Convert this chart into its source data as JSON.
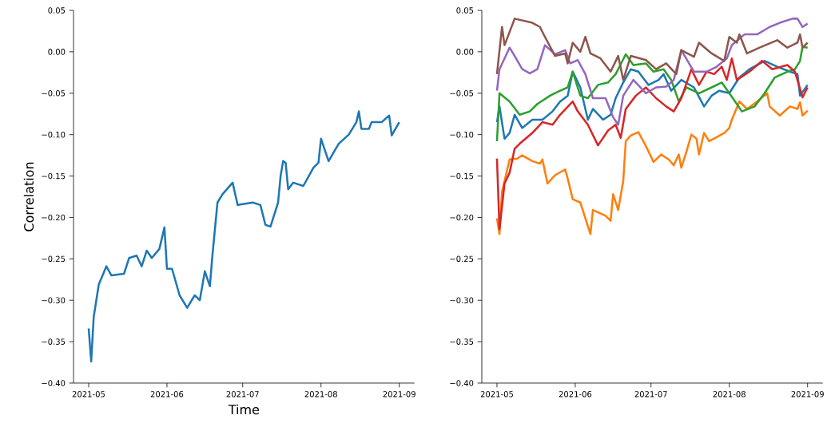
{
  "chart_data": [
    {
      "type": "line",
      "xlabel": "Time",
      "ylabel": "Correlation",
      "xlim": [
        "2021-04-25",
        "2021-09-07"
      ],
      "ylim": [
        -0.4,
        0.05
      ],
      "xticks": [
        "2021-05",
        "2021-06",
        "2021-07",
        "2021-08",
        "2021-09"
      ],
      "yticks": [
        {
          "value": -0.4,
          "label": "−0.40"
        },
        {
          "value": -0.35,
          "label": "−0.35"
        },
        {
          "value": -0.3,
          "label": "−0.30"
        },
        {
          "value": -0.25,
          "label": "−0.25"
        },
        {
          "value": -0.2,
          "label": "−0.20"
        },
        {
          "value": -0.15,
          "label": "−0.15"
        },
        {
          "value": -0.1,
          "label": "−0.10"
        },
        {
          "value": -0.05,
          "label": "−0.05"
        },
        {
          "value": 0,
          "label": "0.00"
        },
        {
          "value": 0.05,
          "label": "0.05"
        }
      ],
      "series": [
        {
          "color": "#1f77b4",
          "x": [
            "2021-05-01",
            "2021-05-02",
            "2021-05-03",
            "2021-05-05",
            "2021-05-08",
            "2021-05-10",
            "2021-05-15",
            "2021-05-17",
            "2021-05-20",
            "2021-05-22",
            "2021-05-24",
            "2021-05-26",
            "2021-05-29",
            "2021-05-31",
            "2021-06-01",
            "2021-06-03",
            "2021-06-06",
            "2021-06-09",
            "2021-06-12",
            "2021-06-14",
            "2021-06-16",
            "2021-06-18",
            "2021-06-19",
            "2021-06-20",
            "2021-06-21",
            "2021-06-23",
            "2021-06-27",
            "2021-06-29",
            "2021-07-05",
            "2021-07-08",
            "2021-07-10",
            "2021-07-12",
            "2021-07-15",
            "2021-07-16",
            "2021-07-17",
            "2021-07-18",
            "2021-07-19",
            "2021-07-21",
            "2021-07-25",
            "2021-07-29",
            "2021-07-31",
            "2021-08-01",
            "2021-08-02",
            "2021-08-04",
            "2021-08-08",
            "2021-08-12",
            "2021-08-15",
            "2021-08-16",
            "2021-08-17",
            "2021-08-20",
            "2021-08-21",
            "2021-08-25",
            "2021-08-28",
            "2021-08-29",
            "2021-09-01"
          ],
          "values": [
            -0.334,
            -0.374,
            -0.32,
            -0.281,
            -0.259,
            -0.27,
            -0.268,
            -0.249,
            -0.246,
            -0.259,
            -0.24,
            -0.249,
            -0.238,
            -0.212,
            -0.262,
            -0.262,
            -0.294,
            -0.309,
            -0.294,
            -0.3,
            -0.265,
            -0.283,
            -0.246,
            -0.214,
            -0.182,
            -0.172,
            -0.158,
            -0.185,
            -0.182,
            -0.185,
            -0.209,
            -0.211,
            -0.182,
            -0.15,
            -0.132,
            -0.134,
            -0.166,
            -0.158,
            -0.162,
            -0.14,
            -0.134,
            -0.105,
            -0.114,
            -0.132,
            -0.111,
            -0.1,
            -0.085,
            -0.072,
            -0.093,
            -0.093,
            -0.085,
            -0.085,
            -0.077,
            -0.101,
            -0.085
          ]
        }
      ]
    },
    {
      "type": "line",
      "xlim": [
        "2021-04-25",
        "2021-09-07"
      ],
      "ylim": [
        -0.4,
        0.05
      ],
      "xticks": [
        "2021-05",
        "2021-06",
        "2021-07",
        "2021-08",
        "2021-09"
      ],
      "yticks": [
        {
          "value": -0.4,
          "label": "−0.40"
        },
        {
          "value": -0.35,
          "label": "−0.35"
        },
        {
          "value": -0.3,
          "label": "−0.30"
        },
        {
          "value": -0.25,
          "label": "−0.25"
        },
        {
          "value": -0.2,
          "label": "−0.20"
        },
        {
          "value": -0.15,
          "label": "−0.15"
        },
        {
          "value": -0.1,
          "label": "−0.10"
        },
        {
          "value": -0.05,
          "label": "−0.05"
        },
        {
          "value": 0,
          "label": "0.00"
        },
        {
          "value": 0.05,
          "label": "0.05"
        }
      ],
      "series": [
        {
          "color": "#1f77b4",
          "x": [
            "2021-05-01",
            "2021-05-02",
            "2021-05-04",
            "2021-05-06",
            "2021-05-08",
            "2021-05-11",
            "2021-05-15",
            "2021-05-19",
            "2021-05-23",
            "2021-05-26",
            "2021-05-29",
            "2021-05-31",
            "2021-06-03",
            "2021-06-06",
            "2021-06-08",
            "2021-06-12",
            "2021-06-15",
            "2021-06-17",
            "2021-06-20",
            "2021-06-23",
            "2021-06-26",
            "2021-06-30",
            "2021-07-04",
            "2021-07-06",
            "2021-07-09",
            "2021-07-13",
            "2021-07-18",
            "2021-07-22",
            "2021-07-25",
            "2021-07-28",
            "2021-08-01",
            "2021-08-05",
            "2021-08-09",
            "2021-08-15",
            "2021-08-20",
            "2021-08-25",
            "2021-08-28",
            "2021-08-29",
            "2021-09-01"
          ],
          "values": [
            -0.085,
            -0.066,
            -0.105,
            -0.098,
            -0.076,
            -0.092,
            -0.082,
            -0.082,
            -0.072,
            -0.06,
            -0.053,
            -0.024,
            -0.043,
            -0.082,
            -0.069,
            -0.082,
            -0.076,
            -0.056,
            -0.037,
            -0.021,
            -0.024,
            -0.04,
            -0.034,
            -0.027,
            -0.047,
            -0.034,
            -0.043,
            -0.066,
            -0.053,
            -0.047,
            -0.05,
            -0.031,
            -0.021,
            -0.011,
            -0.018,
            -0.024,
            -0.027,
            -0.053,
            -0.04
          ]
        },
        {
          "color": "#ff7f0e",
          "x": [
            "2021-05-01",
            "2021-05-02",
            "2021-05-03",
            "2021-05-06",
            "2021-05-09",
            "2021-05-11",
            "2021-05-15",
            "2021-05-18",
            "2021-05-19",
            "2021-05-21",
            "2021-05-24",
            "2021-05-28",
            "2021-05-29",
            "2021-05-31",
            "2021-06-03",
            "2021-06-05",
            "2021-06-07",
            "2021-06-08",
            "2021-06-13",
            "2021-06-15",
            "2021-06-16",
            "2021-06-18",
            "2021-06-20",
            "2021-06-21",
            "2021-06-23",
            "2021-06-26",
            "2021-06-29",
            "2021-07-02",
            "2021-07-05",
            "2021-07-08",
            "2021-07-10",
            "2021-07-12",
            "2021-07-13",
            "2021-07-15",
            "2021-07-17",
            "2021-07-19",
            "2021-07-20",
            "2021-07-22",
            "2021-07-24",
            "2021-07-27",
            "2021-07-30",
            "2021-08-01",
            "2021-08-02",
            "2021-08-05",
            "2021-08-08",
            "2021-08-12",
            "2021-08-16",
            "2021-08-17",
            "2021-08-21",
            "2021-08-25",
            "2021-08-28",
            "2021-08-29",
            "2021-08-30",
            "2021-09-01"
          ],
          "values": [
            -0.201,
            -0.22,
            -0.169,
            -0.13,
            -0.129,
            -0.125,
            -0.132,
            -0.135,
            -0.13,
            -0.159,
            -0.149,
            -0.142,
            -0.153,
            -0.178,
            -0.182,
            -0.201,
            -0.22,
            -0.191,
            -0.198,
            -0.204,
            -0.172,
            -0.191,
            -0.156,
            -0.108,
            -0.101,
            -0.097,
            -0.114,
            -0.133,
            -0.124,
            -0.13,
            -0.137,
            -0.124,
            -0.14,
            -0.121,
            -0.1,
            -0.105,
            -0.124,
            -0.098,
            -0.108,
            -0.103,
            -0.098,
            -0.092,
            -0.082,
            -0.06,
            -0.069,
            -0.06,
            -0.05,
            -0.066,
            -0.077,
            -0.066,
            -0.069,
            -0.061,
            -0.077,
            -0.071
          ]
        },
        {
          "color": "#2ca02c",
          "x": [
            "2021-05-01",
            "2021-05-02",
            "2021-05-06",
            "2021-05-10",
            "2021-05-14",
            "2021-05-17",
            "2021-05-22",
            "2021-05-26",
            "2021-05-29",
            "2021-05-31",
            "2021-06-03",
            "2021-06-06",
            "2021-06-10",
            "2021-06-14",
            "2021-06-17",
            "2021-06-21",
            "2021-06-24",
            "2021-06-29",
            "2021-07-02",
            "2021-07-06",
            "2021-07-09",
            "2021-07-12",
            "2021-07-15",
            "2021-07-20",
            "2021-07-25",
            "2021-07-29",
            "2021-08-01",
            "2021-08-06",
            "2021-08-11",
            "2021-08-15",
            "2021-08-19",
            "2021-08-24",
            "2021-08-27",
            "2021-08-29",
            "2021-08-30",
            "2021-09-01"
          ],
          "values": [
            -0.108,
            -0.05,
            -0.06,
            -0.076,
            -0.072,
            -0.063,
            -0.053,
            -0.047,
            -0.043,
            -0.024,
            -0.053,
            -0.056,
            -0.04,
            -0.037,
            -0.027,
            -0.003,
            -0.016,
            -0.014,
            -0.024,
            -0.021,
            -0.034,
            -0.06,
            -0.043,
            -0.05,
            -0.043,
            -0.037,
            -0.05,
            -0.072,
            -0.066,
            -0.05,
            -0.031,
            -0.024,
            -0.021,
            -0.011,
            0.006,
            0.005
          ]
        },
        {
          "color": "#d62728",
          "x": [
            "2021-05-01",
            "2021-05-02",
            "2021-05-04",
            "2021-05-06",
            "2021-05-08",
            "2021-05-10",
            "2021-05-15",
            "2021-05-19",
            "2021-05-23",
            "2021-05-26",
            "2021-05-31",
            "2021-06-02",
            "2021-06-06",
            "2021-06-10",
            "2021-06-14",
            "2021-06-17",
            "2021-06-19",
            "2021-06-21",
            "2021-06-25",
            "2021-06-29",
            "2021-07-03",
            "2021-07-07",
            "2021-07-10",
            "2021-07-13",
            "2021-07-17",
            "2021-07-20",
            "2021-07-23",
            "2021-07-26",
            "2021-07-29",
            "2021-07-31",
            "2021-08-02",
            "2021-08-04",
            "2021-08-09",
            "2021-08-14",
            "2021-08-18",
            "2021-08-24",
            "2021-08-27",
            "2021-08-30",
            "2021-09-01"
          ],
          "values": [
            -0.129,
            -0.214,
            -0.159,
            -0.146,
            -0.117,
            -0.111,
            -0.098,
            -0.085,
            -0.088,
            -0.076,
            -0.06,
            -0.072,
            -0.088,
            -0.113,
            -0.095,
            -0.088,
            -0.104,
            -0.069,
            -0.053,
            -0.043,
            -0.056,
            -0.066,
            -0.072,
            -0.056,
            -0.021,
            -0.04,
            -0.024,
            -0.027,
            -0.018,
            -0.034,
            -0.008,
            -0.034,
            -0.024,
            -0.011,
            -0.021,
            -0.016,
            -0.024,
            -0.055,
            -0.043
          ]
        },
        {
          "color": "#9467bd",
          "x": [
            "2021-05-01",
            "2021-05-02",
            "2021-05-06",
            "2021-05-08",
            "2021-05-11",
            "2021-05-14",
            "2021-05-17",
            "2021-05-20",
            "2021-05-24",
            "2021-05-28",
            "2021-05-30",
            "2021-06-02",
            "2021-06-05",
            "2021-06-08",
            "2021-06-13",
            "2021-06-16",
            "2021-06-18",
            "2021-06-20",
            "2021-06-24",
            "2021-06-29",
            "2021-07-03",
            "2021-07-07",
            "2021-07-10",
            "2021-07-13",
            "2021-07-18",
            "2021-07-23",
            "2021-07-27",
            "2021-07-31",
            "2021-08-02",
            "2021-08-07",
            "2021-08-12",
            "2021-08-17",
            "2021-08-21",
            "2021-08-26",
            "2021-08-28",
            "2021-08-30",
            "2021-09-01"
          ],
          "values": [
            -0.047,
            -0.021,
            0.005,
            -0.005,
            -0.021,
            -0.026,
            -0.021,
            0.008,
            -0.003,
            0.002,
            -0.014,
            -0.01,
            -0.027,
            -0.056,
            -0.056,
            -0.079,
            -0.088,
            -0.053,
            -0.034,
            -0.05,
            -0.043,
            -0.042,
            -0.034,
            0.002,
            -0.024,
            -0.024,
            -0.018,
            -0.008,
            0.008,
            0.021,
            0.021,
            0.03,
            0.035,
            0.04,
            0.04,
            0.03,
            0.034
          ]
        },
        {
          "color": "#8c564b",
          "x": [
            "2021-05-01",
            "2021-05-03",
            "2021-05-04",
            "2021-05-08",
            "2021-05-15",
            "2021-05-18",
            "2021-05-20",
            "2021-05-24",
            "2021-05-28",
            "2021-05-29",
            "2021-05-31",
            "2021-06-03",
            "2021-06-05",
            "2021-06-07",
            "2021-06-11",
            "2021-06-15",
            "2021-06-18",
            "2021-06-20",
            "2021-06-23",
            "2021-06-29",
            "2021-07-03",
            "2021-07-07",
            "2021-07-11",
            "2021-07-13",
            "2021-07-18",
            "2021-07-20",
            "2021-07-25",
            "2021-07-30",
            "2021-08-01",
            "2021-08-04",
            "2021-08-05",
            "2021-08-08",
            "2021-08-13",
            "2021-08-20",
            "2021-08-24",
            "2021-08-28",
            "2021-08-29",
            "2021-08-30",
            "2021-09-01"
          ],
          "values": [
            -0.027,
            0.03,
            0.008,
            0.04,
            0.035,
            0.03,
            0.018,
            -0.005,
            -0.002,
            -0.014,
            0.011,
            0.0,
            0.018,
            -0.002,
            -0.008,
            -0.024,
            -0.005,
            -0.034,
            -0.005,
            -0.01,
            -0.021,
            -0.014,
            -0.027,
            0.002,
            -0.006,
            0.011,
            -0.002,
            -0.011,
            0.018,
            0.011,
            0.021,
            -0.002,
            0.005,
            0.014,
            0.005,
            0.011,
            0.021,
            0.005,
            0.011
          ]
        }
      ]
    }
  ]
}
